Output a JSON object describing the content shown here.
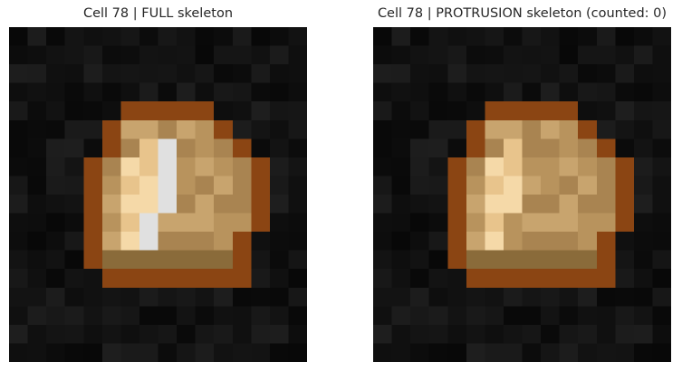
{
  "panels": [
    {
      "id": "full",
      "title": "Cell 78 | FULL skeleton",
      "skeleton_shown": true
    },
    {
      "id": "protrusion",
      "title": "Cell 78 | PROTRUSION skeleton (counted: 0)",
      "skeleton_shown": false
    }
  ],
  "colors": {
    "background_dark": "#0c0c0c",
    "cell_outline": "#8b4513",
    "cell_fill_light": "#f5d9a8",
    "cell_fill_mid": "#c8a46e",
    "cell_fill_dark": "#8a6b3a",
    "skeleton": "#e0e0e0"
  }
}
